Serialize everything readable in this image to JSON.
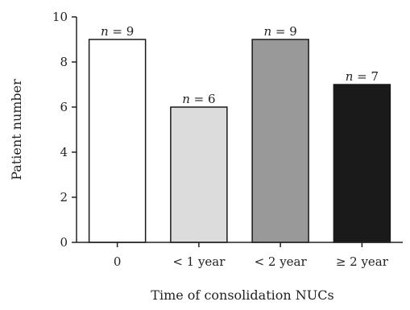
{
  "chart_data": {
    "type": "bar",
    "categories": [
      "0",
      "< 1 year",
      "< 2 year",
      "≥ 2 year"
    ],
    "values": [
      9,
      6,
      9,
      7
    ],
    "bar_colors": [
      "#ffffff",
      "#dcdcdc",
      "#999999",
      "#1a1a1a"
    ],
    "data_labels": [
      "n = 9",
      "n = 6",
      "n = 9",
      "n = 7"
    ],
    "xlabel": "Time of consolidation NUCs",
    "ylabel": "Patient number",
    "ylim": [
      0,
      10
    ],
    "yticks": [
      0,
      2,
      4,
      6,
      8,
      10
    ],
    "grid": false
  }
}
